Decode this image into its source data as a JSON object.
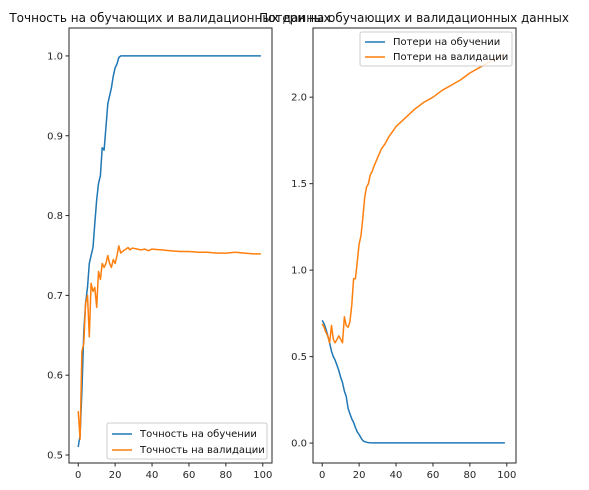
{
  "colors": {
    "train": "#1f77b4",
    "val": "#ff7f0e",
    "axis": "#262626"
  },
  "chart_data": [
    {
      "type": "line",
      "title": "Точность на обучающих и валидационных данных",
      "xlim": [
        -5,
        105
      ],
      "ylim": [
        0.49,
        1.035
      ],
      "xticks": [
        0,
        20,
        40,
        60,
        80,
        100
      ],
      "xtick_labels": [
        "0",
        "20",
        "40",
        "60",
        "80",
        "100"
      ],
      "yticks": [
        0.5,
        0.6,
        0.7,
        0.8,
        0.9,
        1.0
      ],
      "ytick_labels": [
        "0.5",
        "0.6",
        "0.7",
        "0.8",
        "0.9",
        "1.0"
      ],
      "legend": "lower-right",
      "grid": false,
      "series": [
        {
          "name": "Точность на обучении",
          "x": [
            0,
            1,
            2,
            3,
            4,
            5,
            6,
            7,
            8,
            9,
            10,
            11,
            12,
            13,
            14,
            15,
            16,
            17,
            18,
            19,
            20,
            21,
            22,
            23,
            24,
            25,
            30,
            40,
            50,
            60,
            70,
            80,
            90,
            99
          ],
          "values": [
            0.51,
            0.525,
            0.58,
            0.655,
            0.69,
            0.71,
            0.74,
            0.75,
            0.76,
            0.79,
            0.82,
            0.84,
            0.85,
            0.885,
            0.882,
            0.91,
            0.94,
            0.95,
            0.96,
            0.975,
            0.985,
            0.99,
            0.998,
            1.0,
            1.0,
            1.0,
            1.0,
            1.0,
            1.0,
            1.0,
            1.0,
            1.0,
            1.0,
            1.0
          ]
        },
        {
          "name": "Точность на валидации",
          "x": [
            0,
            1,
            2,
            3,
            4,
            5,
            6,
            7,
            8,
            9,
            10,
            11,
            12,
            13,
            14,
            15,
            16,
            17,
            18,
            19,
            20,
            21,
            22,
            23,
            24,
            25,
            26,
            27,
            28,
            29,
            30,
            32,
            34,
            36,
            38,
            40,
            45,
            50,
            55,
            60,
            65,
            70,
            75,
            80,
            85,
            90,
            95,
            99
          ],
          "values": [
            0.555,
            0.52,
            0.63,
            0.64,
            0.69,
            0.7,
            0.648,
            0.715,
            0.705,
            0.71,
            0.685,
            0.73,
            0.72,
            0.74,
            0.735,
            0.74,
            0.75,
            0.74,
            0.735,
            0.745,
            0.74,
            0.75,
            0.762,
            0.753,
            0.755,
            0.757,
            0.758,
            0.76,
            0.757,
            0.759,
            0.759,
            0.758,
            0.757,
            0.758,
            0.756,
            0.758,
            0.757,
            0.756,
            0.755,
            0.755,
            0.754,
            0.754,
            0.753,
            0.753,
            0.754,
            0.753,
            0.752,
            0.752
          ]
        }
      ]
    },
    {
      "type": "line",
      "title": "Потери на обучающих и валидационных данных",
      "xlim": [
        -5,
        105
      ],
      "ylim": [
        -0.115,
        2.4
      ],
      "xticks": [
        0,
        20,
        40,
        60,
        80,
        100
      ],
      "xtick_labels": [
        "0",
        "20",
        "40",
        "60",
        "80",
        "100"
      ],
      "yticks": [
        0.0,
        0.5,
        1.0,
        1.5,
        2.0
      ],
      "ytick_labels": [
        "0.0",
        "0.5",
        "1.0",
        "1.5",
        "2.0"
      ],
      "legend": "top-right",
      "grid": false,
      "series": [
        {
          "name": "Потери на обучении",
          "x": [
            0,
            1,
            2,
            3,
            4,
            5,
            6,
            7,
            8,
            9,
            10,
            11,
            12,
            13,
            14,
            15,
            16,
            17,
            18,
            19,
            20,
            21,
            22,
            23,
            24,
            25,
            26,
            28,
            30,
            40,
            50,
            60,
            70,
            80,
            90,
            99
          ],
          "values": [
            0.71,
            0.69,
            0.66,
            0.62,
            0.58,
            0.53,
            0.5,
            0.48,
            0.45,
            0.42,
            0.38,
            0.35,
            0.3,
            0.27,
            0.2,
            0.17,
            0.14,
            0.12,
            0.09,
            0.065,
            0.05,
            0.03,
            0.015,
            0.008,
            0.005,
            0.003,
            0.002,
            0.001,
            0.001,
            0.001,
            0.001,
            0.001,
            0.001,
            0.001,
            0.001,
            0.001
          ]
        },
        {
          "name": "Потери на валидации",
          "x": [
            0,
            1,
            2,
            3,
            4,
            5,
            6,
            7,
            8,
            9,
            10,
            11,
            12,
            13,
            14,
            15,
            16,
            17,
            18,
            19,
            20,
            21,
            22,
            23,
            24,
            25,
            26,
            27,
            28,
            30,
            32,
            34,
            36,
            38,
            40,
            45,
            50,
            55,
            60,
            65,
            70,
            75,
            80,
            85,
            90,
            95,
            99
          ],
          "values": [
            0.69,
            0.67,
            0.64,
            0.62,
            0.58,
            0.68,
            0.6,
            0.58,
            0.6,
            0.62,
            0.6,
            0.58,
            0.73,
            0.68,
            0.67,
            0.7,
            0.8,
            0.95,
            0.95,
            1.05,
            1.15,
            1.2,
            1.3,
            1.42,
            1.48,
            1.5,
            1.55,
            1.57,
            1.6,
            1.65,
            1.7,
            1.73,
            1.77,
            1.8,
            1.83,
            1.88,
            1.93,
            1.97,
            2.0,
            2.04,
            2.07,
            2.1,
            2.14,
            2.17,
            2.2,
            2.23,
            2.25
          ]
        }
      ]
    }
  ]
}
